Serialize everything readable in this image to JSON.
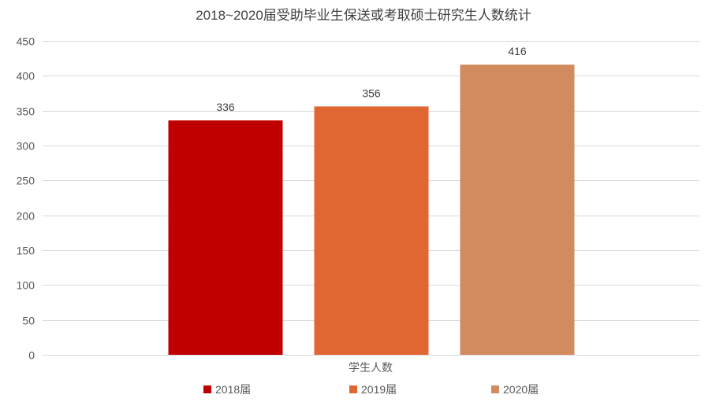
{
  "chart_data": {
    "type": "bar",
    "title": "2018~2020届受助毕业生保送或考取硕士研究生人数统计",
    "categories": [
      "学生人数"
    ],
    "series": [
      {
        "name": "2018届",
        "values": [
          336
        ],
        "color": "#c00000"
      },
      {
        "name": "2019届",
        "values": [
          356
        ],
        "color": "#e06632"
      },
      {
        "name": "2020届",
        "values": [
          416
        ],
        "color": "#d28b5e"
      }
    ],
    "ylim": [
      0,
      450
    ],
    "yticks": [
      0,
      50,
      100,
      150,
      200,
      250,
      300,
      350,
      400,
      450
    ],
    "grid": true,
    "legend": "bottom"
  }
}
